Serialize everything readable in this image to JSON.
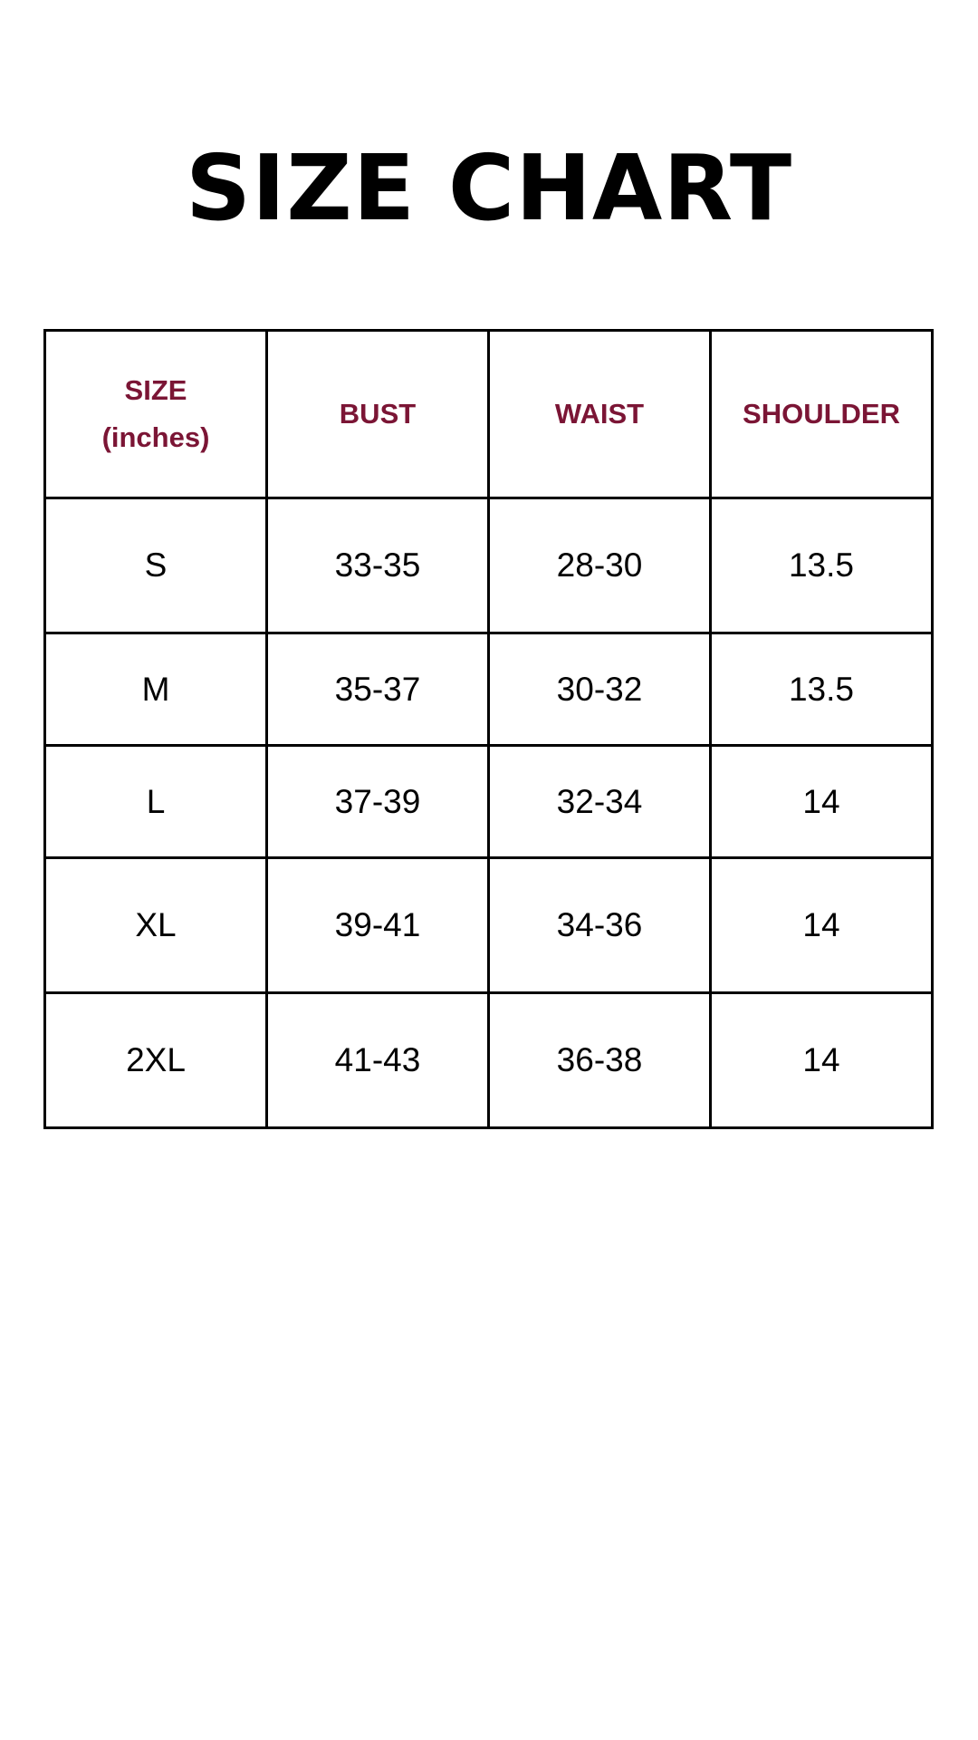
{
  "title": "SIZE CHART",
  "accent_color": "#7b1535",
  "table": {
    "headers": [
      {
        "line1": "SIZE",
        "line2": "(inches)"
      },
      {
        "line1": "BUST"
      },
      {
        "line1": "WAIST"
      },
      {
        "line1": "SHOULDER"
      }
    ],
    "rows": [
      [
        "S",
        "33-35",
        "28-30",
        "13.5"
      ],
      [
        "M",
        "35-37",
        "30-32",
        "13.5"
      ],
      [
        "L",
        "37-39",
        "32-34",
        "14"
      ],
      [
        "XL",
        "39-41",
        "34-36",
        "14"
      ],
      [
        "2XL",
        "41-43",
        "36-38",
        "14"
      ]
    ]
  }
}
